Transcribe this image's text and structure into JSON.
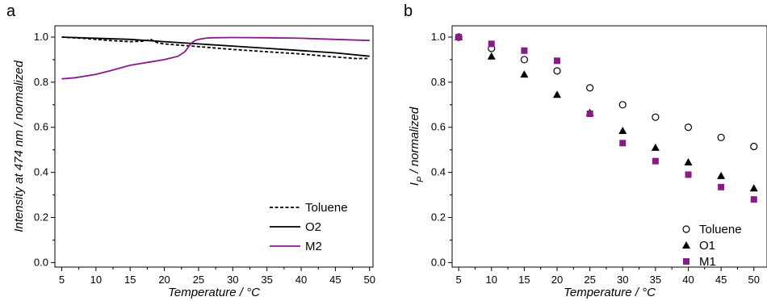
{
  "chart_data": [
    {
      "panel_label": "a",
      "type": "line",
      "xlabel": "Temperature / °C",
      "ylabel": "Intensity at 474 nm / normalized",
      "xlim": [
        4,
        50.5
      ],
      "ylim": [
        -0.02,
        1.05
      ],
      "xticks": [
        5,
        10,
        15,
        20,
        25,
        30,
        35,
        40,
        45,
        50
      ],
      "yticks": [
        0.0,
        0.2,
        0.4,
        0.6,
        0.8,
        1.0
      ],
      "ytick_labels": [
        "0.0",
        "0.2",
        "0.4",
        "0.6",
        "0.8",
        "1.0"
      ],
      "legend_position": "bottom-right",
      "series": [
        {
          "name": "Toluene",
          "color": "#000000",
          "style": "dashed",
          "x": [
            5,
            8,
            10,
            12,
            15,
            17,
            18,
            19,
            20,
            22,
            24,
            26,
            28,
            30,
            35,
            40,
            45,
            48,
            50
          ],
          "y": [
            1.0,
            0.995,
            0.99,
            0.985,
            0.98,
            0.982,
            0.99,
            0.975,
            0.97,
            0.965,
            0.96,
            0.955,
            0.95,
            0.945,
            0.935,
            0.925,
            0.912,
            0.905,
            0.905
          ]
        },
        {
          "name": "O2",
          "color": "#000000",
          "style": "solid",
          "x": [
            5,
            10,
            15,
            20,
            25,
            30,
            35,
            40,
            45,
            50
          ],
          "y": [
            1.0,
            0.995,
            0.99,
            0.98,
            0.97,
            0.96,
            0.95,
            0.94,
            0.93,
            0.915
          ]
        },
        {
          "name": "M2",
          "color": "#8B1A89",
          "style": "solid",
          "x": [
            5,
            7,
            10,
            12,
            15,
            18,
            20,
            22,
            23,
            23.5,
            24,
            24.5,
            25,
            26,
            27,
            30,
            35,
            40,
            45,
            50
          ],
          "y": [
            0.815,
            0.82,
            0.835,
            0.85,
            0.875,
            0.89,
            0.9,
            0.915,
            0.935,
            0.955,
            0.975,
            0.985,
            0.99,
            0.995,
            0.997,
            0.998,
            0.997,
            0.995,
            0.99,
            0.985
          ]
        }
      ]
    },
    {
      "panel_label": "b",
      "type": "scatter",
      "xlabel": "Temperature / °C",
      "ylabel_main": "I",
      "ylabel_sub": "P",
      "ylabel_rest": " / normalized",
      "xlim": [
        4,
        52
      ],
      "ylim": [
        -0.02,
        1.05
      ],
      "xticks": [
        5,
        10,
        15,
        20,
        25,
        30,
        35,
        40,
        45,
        50
      ],
      "yticks": [
        0.0,
        0.2,
        0.4,
        0.6,
        0.8,
        1.0
      ],
      "ytick_labels": [
        "0.0",
        "0.2",
        "0.4",
        "0.6",
        "0.8",
        "1.0"
      ],
      "legend_position": "bottom-right",
      "series": [
        {
          "name": "Toluene",
          "marker": "circle-open",
          "color": "#000000",
          "x": [
            5,
            10,
            15,
            20,
            25,
            30,
            35,
            40,
            45,
            50
          ],
          "y": [
            1.0,
            0.95,
            0.9,
            0.85,
            0.775,
            0.7,
            0.645,
            0.6,
            0.555,
            0.515
          ]
        },
        {
          "name": "O1",
          "marker": "triangle-filled",
          "color": "#000000",
          "x": [
            5,
            10,
            15,
            20,
            25,
            30,
            35,
            40,
            45,
            50
          ],
          "y": [
            1.0,
            0.915,
            0.835,
            0.745,
            0.665,
            0.585,
            0.51,
            0.445,
            0.385,
            0.33
          ]
        },
        {
          "name": "M1",
          "marker": "square-filled",
          "color": "#8B1A89",
          "x": [
            5,
            10,
            15,
            20,
            25,
            30,
            35,
            40,
            45,
            50
          ],
          "y": [
            1.0,
            0.97,
            0.94,
            0.895,
            0.66,
            0.53,
            0.45,
            0.39,
            0.335,
            0.28
          ]
        }
      ]
    }
  ]
}
